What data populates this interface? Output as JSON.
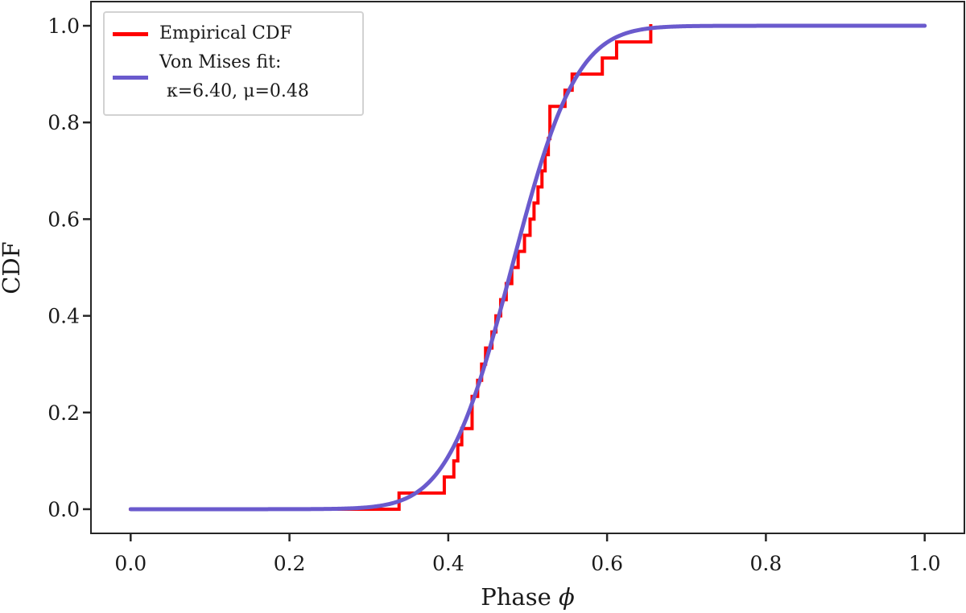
{
  "chart_data": {
    "type": "line",
    "title": "",
    "xlabel_text": "Phase",
    "xlabel_symbol": "ϕ",
    "ylabel": "CDF",
    "xlim": [
      -0.05,
      1.05
    ],
    "ylim": [
      -0.05,
      1.05
    ],
    "x_ticks": [
      0.0,
      0.2,
      0.4,
      0.6,
      0.8,
      1.0
    ],
    "y_ticks": [
      0.0,
      0.2,
      0.4,
      0.6,
      0.8,
      1.0
    ],
    "x_tick_labels": [
      "0.0",
      "0.2",
      "0.4",
      "0.6",
      "0.8",
      "1.0"
    ],
    "y_tick_labels": [
      "0.0",
      "0.2",
      "0.4",
      "0.6",
      "0.8",
      "1.0"
    ],
    "grid": false,
    "legend_position": "upper left",
    "series": [
      {
        "name": "Empirical CDF",
        "type": "step_ecdf",
        "color": "#ff0000",
        "linewidth": 4,
        "x_start": 0.0,
        "samples": [
          0.338,
          0.395,
          0.407,
          0.412,
          0.417,
          0.43,
          0.43,
          0.437,
          0.442,
          0.447,
          0.455,
          0.46,
          0.466,
          0.473,
          0.48,
          0.488,
          0.496,
          0.503,
          0.508,
          0.513,
          0.518,
          0.522,
          0.526,
          0.528,
          0.528,
          0.547,
          0.556,
          0.594,
          0.612,
          0.655
        ],
        "n_samples": 30
      },
      {
        "name": "Von Mises fit: κ=6.40, μ=0.48",
        "type": "von_mises_cdf",
        "color": "#6a5acd",
        "linewidth": 5,
        "kappa": 6.4,
        "mu": 0.48,
        "x_range": [
          0.0,
          1.0
        ]
      }
    ]
  },
  "legend": {
    "items": [
      {
        "label": "Empirical CDF",
        "color": "#ff0000"
      },
      {
        "label_line1": "Von Mises fit:",
        "label_line2": "κ=6.40, μ=0.48",
        "color": "#6a5acd"
      }
    ]
  },
  "colors": {
    "empirical": "#ff0000",
    "fit": "#6a5acd",
    "axis": "#262626",
    "text": "#1a1a1a",
    "legend_border": "#d2d2d2",
    "background": "#ffffff"
  }
}
